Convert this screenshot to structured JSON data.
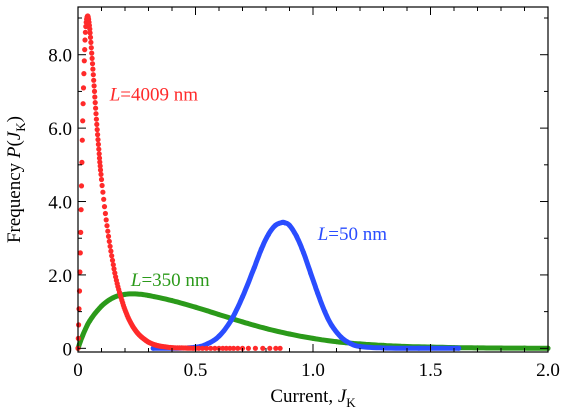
{
  "chart_data": {
    "type": "scatter",
    "xlabel_main": "Current, ",
    "xlabel_var": "J",
    "xlabel_sub": "K",
    "ylabel_main": "Frequency ",
    "ylabel_fn": "P",
    "ylabel_var": "J",
    "ylabel_sub": "K",
    "xlim": [
      0,
      2.0
    ],
    "ylim": [
      -0.1,
      9.3
    ],
    "x_ticks": [
      0,
      0.5,
      1.0,
      1.5,
      2.0
    ],
    "x_tick_labels": [
      "0",
      "0.5",
      "1.0",
      "1.5",
      "2.0"
    ],
    "y_ticks": [
      0,
      2.0,
      4.0,
      6.0,
      8.0
    ],
    "y_tick_labels": [
      "0",
      "2.0",
      "4.0",
      "6.0",
      "8.0"
    ],
    "grid": false,
    "series": [
      {
        "label_italic": "L",
        "label_rest": "=4009 nm",
        "label_x": 0.135,
        "label_y": 6.75,
        "color": "#ff2a2a",
        "style": "dots",
        "x": [
          0.0,
          0.01,
          0.02,
          0.03,
          0.04,
          0.05,
          0.06,
          0.07,
          0.08,
          0.09,
          0.1,
          0.12,
          0.14,
          0.16,
          0.18,
          0.2,
          0.22,
          0.24,
          0.26,
          0.28,
          0.3,
          0.33,
          0.36,
          0.4,
          0.45,
          0.5,
          0.6,
          0.7,
          0.86
        ],
        "y": [
          0.0,
          2.6,
          6.2,
          8.4,
          9.05,
          8.7,
          7.9,
          7.0,
          6.1,
          5.3,
          4.6,
          3.5,
          2.65,
          1.95,
          1.45,
          1.05,
          0.75,
          0.53,
          0.37,
          0.26,
          0.17,
          0.09,
          0.05,
          0.02,
          0.01,
          0.0,
          0.0,
          0.0,
          0.0
        ]
      },
      {
        "label_italic": "L",
        "label_rest": "=350 nm",
        "label_x": 0.225,
        "label_y": 1.7,
        "color": "#2b9a1a",
        "style": "line",
        "x": [
          0.0,
          0.02,
          0.05,
          0.1,
          0.15,
          0.2,
          0.25,
          0.3,
          0.4,
          0.5,
          0.6,
          0.7,
          0.8,
          0.9,
          1.0,
          1.1,
          1.2,
          1.3,
          1.4,
          1.5,
          1.6,
          1.7,
          1.8,
          1.9,
          2.0
        ],
        "y": [
          0.0,
          0.35,
          0.75,
          1.15,
          1.38,
          1.47,
          1.48,
          1.44,
          1.3,
          1.12,
          0.92,
          0.72,
          0.54,
          0.39,
          0.27,
          0.18,
          0.12,
          0.08,
          0.05,
          0.035,
          0.02,
          0.012,
          0.008,
          0.005,
          0.0
        ]
      },
      {
        "label_italic": "L",
        "label_rest": "=50 nm",
        "label_x": 1.02,
        "label_y": 2.95,
        "color": "#2a4dff",
        "style": "line",
        "x": [
          0.32,
          0.4,
          0.5,
          0.55,
          0.6,
          0.65,
          0.7,
          0.75,
          0.78,
          0.81,
          0.84,
          0.87,
          0.88,
          0.9,
          0.93,
          0.96,
          0.99,
          1.02,
          1.05,
          1.08,
          1.12,
          1.16,
          1.2,
          1.3,
          1.45,
          1.62
        ],
        "y": [
          0.0,
          0.0,
          0.03,
          0.12,
          0.33,
          0.75,
          1.4,
          2.2,
          2.7,
          3.1,
          3.35,
          3.43,
          3.42,
          3.35,
          3.05,
          2.6,
          2.05,
          1.5,
          1.0,
          0.62,
          0.3,
          0.13,
          0.05,
          0.01,
          0.0,
          0.0
        ]
      }
    ]
  }
}
